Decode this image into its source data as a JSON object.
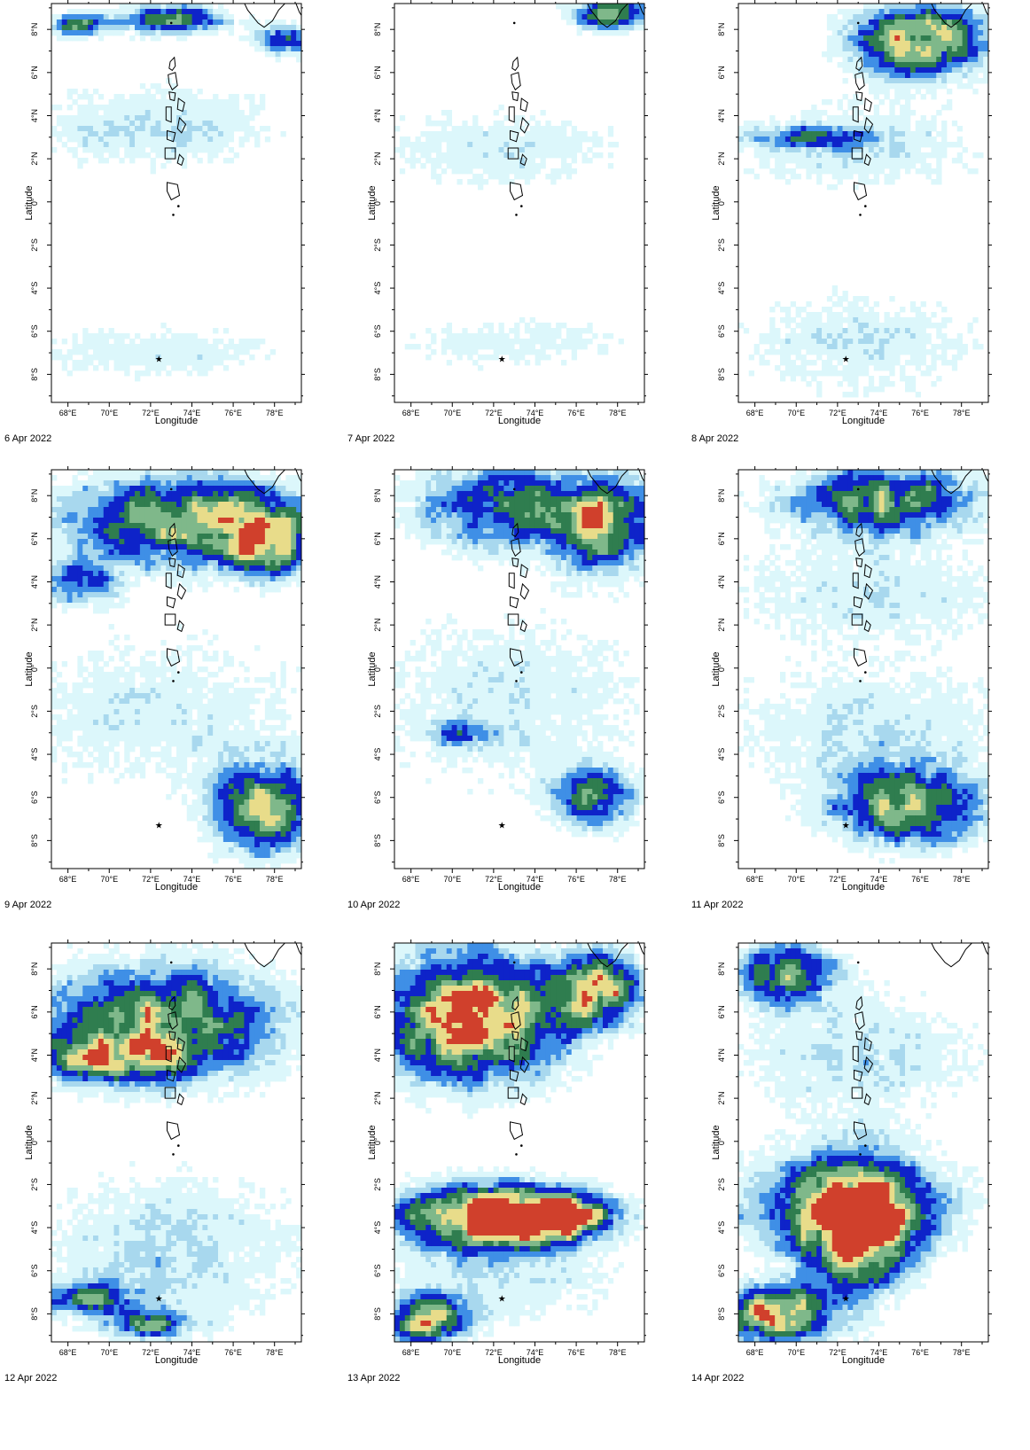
{
  "axes": {
    "xlabel": "Longitude",
    "ylabel": "Latitude",
    "lon_ticks": [
      "68°E",
      "70°E",
      "72°E",
      "74°E",
      "76°E",
      "78°E"
    ],
    "lat_ticks": [
      "8°N",
      "6°N",
      "4°N",
      "2°N",
      "0°",
      "2°S",
      "4°S",
      "6°S",
      "8°S"
    ]
  },
  "palette": {
    "very_light": "#dcf7fb",
    "light": "#a8d8ee",
    "medium": "#3f8fe6",
    "dark": "#0e23c9",
    "green": "#2f7d4f",
    "light_green": "#7fb88a",
    "yellow": "#e8dc8a",
    "red": "#d0402c"
  },
  "panels": [
    {
      "date": "6 Apr 2022"
    },
    {
      "date": "7 Apr 2022"
    },
    {
      "date": "8 Apr 2022"
    },
    {
      "date": "9 Apr 2022"
    },
    {
      "date": "10 Apr 2022"
    },
    {
      "date": "11 Apr 2022"
    },
    {
      "date": "12 Apr 2022"
    },
    {
      "date": "13 Apr 2022"
    },
    {
      "date": "14 Apr 2022"
    }
  ],
  "chart_data": {
    "type": "heatmap",
    "lon_range": [
      67.2,
      79.3
    ],
    "lat_range": [
      -9.3,
      9.2
    ]
  }
}
